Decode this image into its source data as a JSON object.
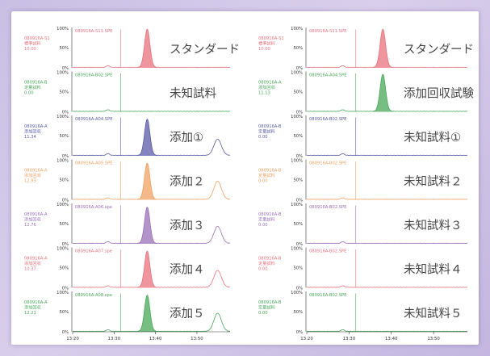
{
  "chart_data": {
    "type": "line",
    "x_range": [
      13.2,
      13.58
    ],
    "y_range": [
      0,
      100
    ],
    "y_ticks": [
      "100%",
      "50%",
      "0%"
    ],
    "x_tick_labels": [
      "13:20",
      "13:30",
      "13:40",
      "13:50"
    ],
    "panels": [
      {
        "column": "left",
        "traces": [
          {
            "sample_id": "080916A-S1",
            "sample_type": "標準試料",
            "amount": "10.00",
            "file": "080916A-S11.SPE",
            "label": "スタンダード",
            "color": "#e8727c",
            "peaks": [
              {
                "rt": 13.38,
                "height": 95,
                "filled": true
              }
            ]
          },
          {
            "sample_id": "080916A-B",
            "sample_type": "定量試料",
            "amount": "0.00",
            "file": "080916A-B02.SPE",
            "label": "未知試料",
            "color": "#4aa85a",
            "peaks": []
          },
          {
            "sample_id": "080916A-A",
            "sample_type": "添加回収",
            "amount": "11.34",
            "file": "080916A-A04.SPE",
            "label": "添加①",
            "color": "#5a5aa8",
            "peaks": [
              {
                "rt": 13.38,
                "height": 90,
                "filled": true
              },
              {
                "rt": 13.55,
                "height": 40,
                "filled": false
              }
            ]
          },
          {
            "sample_id": "080916A-A",
            "sample_type": "添加回収",
            "amount": "12.93",
            "file": "080916A-A05.SPE",
            "label": "添加２",
            "color": "#f0a062",
            "peaks": [
              {
                "rt": 13.38,
                "height": 90,
                "filled": true
              },
              {
                "rt": 13.55,
                "height": 45,
                "filled": false
              }
            ]
          },
          {
            "sample_id": "080916A-A",
            "sample_type": "添加回収",
            "amount": "12.76",
            "file": "080916A-A06.spe",
            "label": "添加３",
            "color": "#9a70b8",
            "peaks": [
              {
                "rt": 13.38,
                "height": 90,
                "filled": true
              },
              {
                "rt": 13.55,
                "height": 42,
                "filled": false
              }
            ]
          },
          {
            "sample_id": "080916A-A",
            "sample_type": "添加回収",
            "amount": "10.37",
            "file": "080916A-A07.spe",
            "label": "添加４",
            "color": "#e8727c",
            "peaks": [
              {
                "rt": 13.38,
                "height": 90,
                "filled": true
              },
              {
                "rt": 13.55,
                "height": 42,
                "filled": false
              }
            ]
          },
          {
            "sample_id": "080916A-A",
            "sample_type": "添加回収",
            "amount": "12.21",
            "file": "080916A-A08.spe",
            "label": "添加５",
            "color": "#4aa85a",
            "peaks": [
              {
                "rt": 13.38,
                "height": 90,
                "filled": true
              },
              {
                "rt": 13.55,
                "height": 45,
                "filled": false
              }
            ]
          }
        ]
      },
      {
        "column": "right",
        "traces": [
          {
            "sample_id": "080916A-S1",
            "sample_type": "標準試料",
            "amount": "10.00",
            "file": "080916A-S11.SPE",
            "label": "スタンダード",
            "color": "#e8727c",
            "peaks": [
              {
                "rt": 13.38,
                "height": 95,
                "filled": true
              }
            ]
          },
          {
            "sample_id": "080916A-A",
            "sample_type": "添加回収",
            "amount": "11.13",
            "file": "080916A-A04.SPE",
            "label": "添加回収試験",
            "color": "#4aa85a",
            "peaks": [
              {
                "rt": 13.38,
                "height": 92,
                "filled": true
              }
            ]
          },
          {
            "sample_id": "080916A-B",
            "sample_type": "定量試料",
            "amount": "0.00",
            "file": "080916A-B02.SPE",
            "label": "未知試料①",
            "color": "#5a5aa8",
            "peaks": []
          },
          {
            "sample_id": "080916A-B",
            "sample_type": "定量試料",
            "amount": "0.00",
            "file": "080916A-B02.SPE",
            "label": "未知試料２",
            "color": "#f0a062",
            "peaks": []
          },
          {
            "sample_id": "080916A-B",
            "sample_type": "定量試料",
            "amount": "0.00",
            "file": "080916A-B02.SPE",
            "label": "未知試料３",
            "color": "#9a70b8",
            "peaks": []
          },
          {
            "sample_id": "080916A-B",
            "sample_type": "定量試料",
            "amount": "0.00",
            "file": "080916A-B02.SPE",
            "label": "未知試料４",
            "color": "#e8727c",
            "peaks": []
          },
          {
            "sample_id": "080916A-B",
            "sample_type": "定量試料",
            "amount": "0.00",
            "file": "080916A-B02.SPE",
            "label": "未知試料５",
            "color": "#4aa85a",
            "peaks": []
          }
        ]
      }
    ]
  }
}
